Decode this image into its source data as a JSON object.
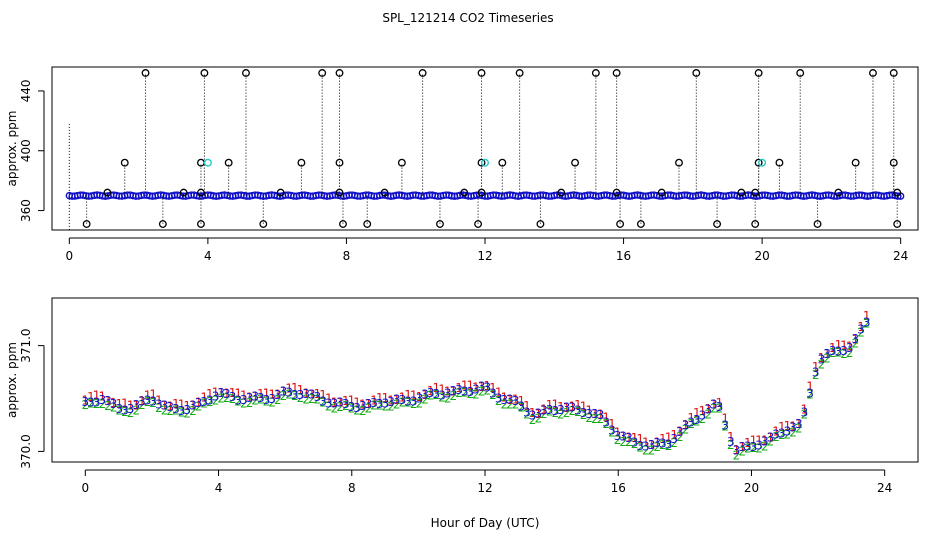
{
  "title": "SPL_121214  CO2 Timeseries",
  "chart_data": [
    {
      "type": "scatter",
      "panel": "top",
      "xlabel": "",
      "ylabel": "approx. ppm",
      "xlim": [
        -0.5,
        24.5
      ],
      "ylim": [
        347,
        456
      ],
      "xticks": [
        0,
        4,
        8,
        12,
        16,
        20,
        24
      ],
      "yticks": [
        360,
        400,
        440
      ],
      "baseline": 370,
      "baseline_color": "#1010c8",
      "spike_color": "#000000",
      "spike_high_value": 452,
      "spike_high_x": [
        2.2,
        3.9,
        5.1,
        7.3,
        7.8,
        10.2,
        11.9,
        13.0,
        15.2,
        15.8,
        18.1,
        19.9,
        21.1,
        23.2,
        23.8
      ],
      "spike_mid_value": 392,
      "spike_mid_x": [
        1.6,
        3.8,
        4.6,
        6.7,
        7.8,
        9.6,
        11.9,
        12.5,
        14.6,
        17.6,
        19.9,
        20.5,
        22.7,
        23.8
      ],
      "spike_low_value": 351,
      "spike_low_x": [
        0.5,
        2.7,
        3.8,
        5.6,
        7.9,
        8.6,
        10.7,
        11.8,
        13.6,
        15.9,
        16.5,
        18.7,
        19.8,
        21.6,
        23.9
      ],
      "small_high_value": 372,
      "small_high_x": [
        1.1,
        3.3,
        3.8,
        6.1,
        7.8,
        9.1,
        11.4,
        11.9,
        14.2,
        15.8,
        17.1,
        19.4,
        19.8,
        22.2,
        23.9
      ],
      "cyan_value": 392,
      "cyan_x": [
        4.0,
        12.0,
        20.0
      ]
    },
    {
      "type": "scatter",
      "panel": "bottom",
      "xlabel": "Hour of Day (UTC)",
      "ylabel": "approx. ppm",
      "xlim": [
        -1.0,
        25.0
      ],
      "ylim": [
        369.9,
        371.45
      ],
      "xticks": [
        0,
        4,
        8,
        12,
        16,
        20,
        24
      ],
      "yticks": [
        370.0,
        371.0
      ],
      "series": [
        {
          "name": "1",
          "label": "1",
          "color": "#dd1111",
          "offset": 0.03
        },
        {
          "name": "2",
          "label": "2",
          "color": "#11aa11",
          "offset": -0.03
        },
        {
          "name": "3",
          "label": "3",
          "color": "#1515cc",
          "offset": 0.0
        }
      ],
      "x": [
        0.0,
        0.5,
        1.0,
        1.5,
        2.0,
        2.5,
        3.0,
        3.5,
        4.0,
        4.5,
        5.0,
        5.5,
        6.0,
        6.5,
        7.0,
        7.5,
        8.0,
        8.5,
        9.0,
        9.5,
        10.0,
        10.5,
        11.0,
        11.5,
        12.0,
        12.5,
        13.0,
        13.5,
        14.0,
        14.5,
        15.0,
        15.5,
        16.0,
        16.5,
        17.0,
        17.5,
        18.0,
        18.5,
        19.0,
        19.5,
        20.0,
        20.5,
        21.0,
        21.5,
        22.0,
        22.5,
        23.0,
        23.5
      ],
      "values": [
        370.45,
        370.5,
        370.4,
        370.42,
        370.5,
        370.4,
        370.4,
        370.45,
        370.55,
        370.5,
        370.5,
        370.5,
        370.55,
        370.55,
        370.5,
        370.45,
        370.43,
        370.43,
        370.47,
        370.47,
        370.5,
        370.55,
        370.55,
        370.58,
        370.6,
        370.5,
        370.45,
        370.33,
        370.4,
        370.4,
        370.38,
        370.32,
        370.15,
        370.08,
        370.05,
        370.08,
        370.22,
        370.35,
        370.45,
        370.0,
        370.05,
        370.1,
        370.2,
        370.25,
        370.85,
        370.95,
        370.98,
        371.25
      ]
    }
  ]
}
